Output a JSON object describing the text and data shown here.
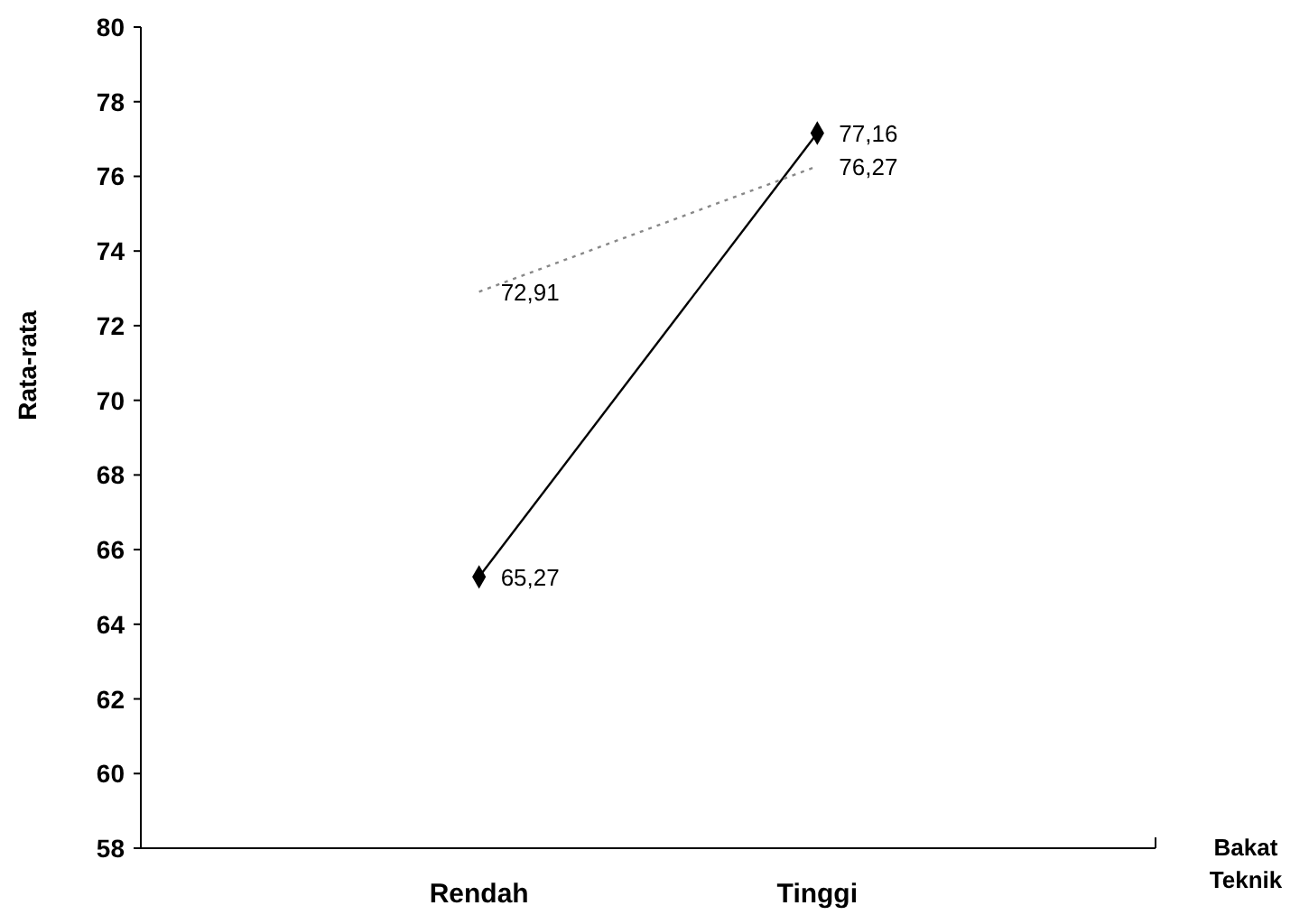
{
  "chart_data": {
    "type": "line",
    "xlabel": "Bakat Teknik",
    "ylabel": "Rata-rata",
    "categories": [
      "Rendah",
      "Tinggi"
    ],
    "series": [
      {
        "color": "#000000",
        "values": [
          65.27,
          77.16
        ],
        "value_labels": [
          "65,27",
          "77,16"
        ],
        "marker": "diamond",
        "line_style": "solid"
      },
      {
        "color": "#888888",
        "values": [
          72.91,
          76.27
        ],
        "value_labels": [
          "72,91",
          "76,27"
        ],
        "marker": "none",
        "line_style": "dotted"
      }
    ],
    "ylim": [
      58,
      80
    ],
    "yticks": [
      58,
      60,
      62,
      64,
      66,
      68,
      70,
      72,
      74,
      76,
      78,
      80
    ]
  }
}
